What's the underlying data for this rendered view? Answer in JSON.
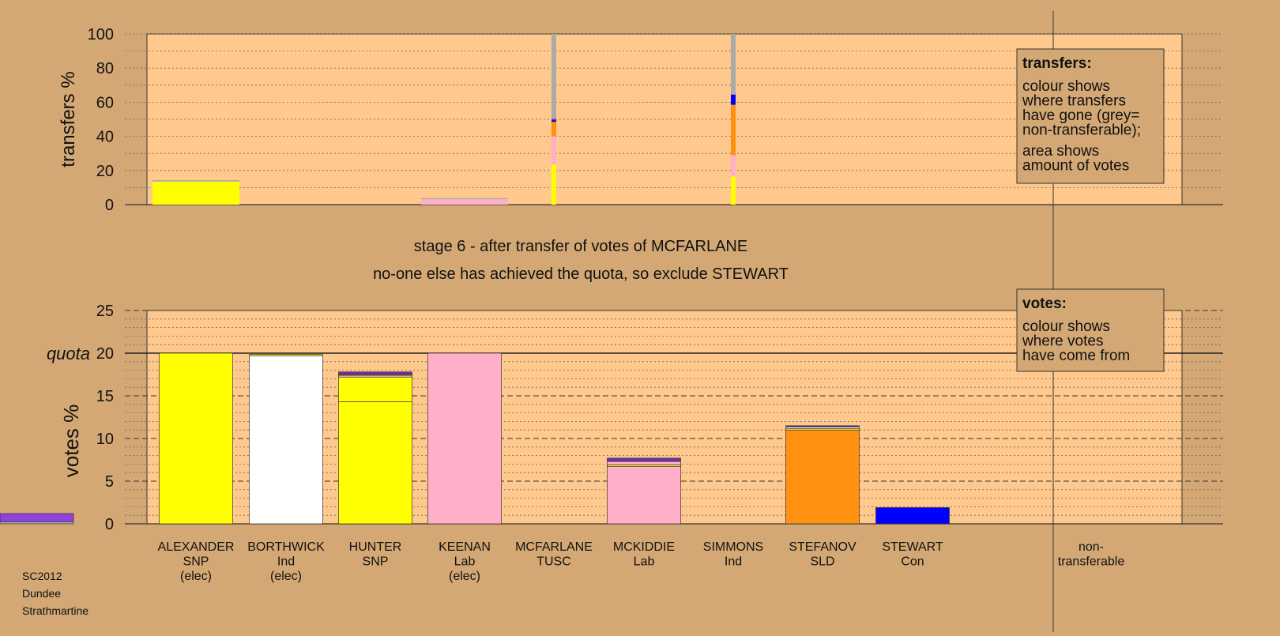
{
  "chart_data": [
    {
      "type": "bar",
      "name": "transfers",
      "ylabel": "transfers %",
      "ylim": [
        0,
        100
      ],
      "yticks": [
        0,
        20,
        40,
        60,
        80,
        100
      ],
      "grid": "dotted every 10",
      "bars": [
        {
          "candidate": "ALEXANDER",
          "segments": [
            {
              "color": "#ffff00",
              "value": 13.5
            },
            {
              "color": "#aaaaaa",
              "value": 0.8
            }
          ]
        },
        {
          "candidate": "KEENAN",
          "segments": [
            {
              "color": "#ffb0c8",
              "value": 3.2
            },
            {
              "color": "#aaaaaa",
              "value": 0.6
            }
          ]
        }
      ],
      "thin_bars": [
        {
          "candidate": "MCFARLANE",
          "segments": [
            {
              "color": "#ffff00",
              "value": 23.5
            },
            {
              "color": "#ffb0c8",
              "value": 16.5
            },
            {
              "color": "#ff9010",
              "value": 8.5
            },
            {
              "color": "#0000ff",
              "value": 1.0
            },
            {
              "color": "#7030a0",
              "value": 0.8
            },
            {
              "color": "#aaaaaa",
              "value": 49.7
            }
          ]
        },
        {
          "candidate": "SIMMONS",
          "segments": [
            {
              "color": "#ffff00",
              "value": 16.5
            },
            {
              "color": "#ffb0c8",
              "value": 12.5
            },
            {
              "color": "#ff9010",
              "value": 29.5
            },
            {
              "color": "#0000ff",
              "value": 6.0
            },
            {
              "color": "#aaaaaa",
              "value": 35.5
            }
          ]
        }
      ],
      "legend": {
        "title": "transfers:",
        "lines": [
          "colour shows",
          "where transfers",
          "have gone (grey=",
          "non-transferable);",
          "area shows",
          "amount of votes"
        ]
      }
    },
    {
      "type": "bar",
      "name": "votes",
      "ylabel": "votes %",
      "ylim": [
        0,
        25
      ],
      "yticks": [
        0,
        5,
        10,
        15,
        20,
        25
      ],
      "quota_value": 20,
      "quota_label": "quota",
      "grid": "dashed every 5, dotted every 1",
      "bars": [
        {
          "candidate": "ALEXANDER",
          "segments": [
            {
              "color": "#ffff00",
              "value": 20.0
            }
          ]
        },
        {
          "candidate": "BORTHWICK",
          "segments": [
            {
              "color": "#ffffff",
              "value": 19.7
            },
            {
              "color": "#ffff00",
              "value": 0.15
            }
          ]
        },
        {
          "candidate": "HUNTER",
          "segments": [
            {
              "color": "#ffff00",
              "value": 14.3
            },
            {
              "color": "#ffff00",
              "value": 2.9
            },
            {
              "color": "#ffb0c8",
              "value": 0.2
            },
            {
              "color": "#ff9010",
              "value": 0.1
            },
            {
              "color": "#7030a0",
              "value": 0.3
            }
          ]
        },
        {
          "candidate": "KEENAN",
          "segments": [
            {
              "color": "#ffb0c8",
              "value": 20.0
            }
          ]
        },
        {
          "candidate": "MCKIDDIE",
          "segments": [
            {
              "color": "#ffb0c8",
              "value": 6.7
            },
            {
              "color": "#ffff00",
              "value": 0.2
            },
            {
              "color": "#ffb0c8",
              "value": 0.4
            },
            {
              "color": "#7030a0",
              "value": 0.4
            }
          ]
        },
        {
          "candidate": "STEFANOV",
          "segments": [
            {
              "color": "#ff9010",
              "value": 11.0
            },
            {
              "color": "#ffff00",
              "value": 0.15
            },
            {
              "color": "#ffffff",
              "value": 0.2
            },
            {
              "color": "#7030a0",
              "value": 0.15
            }
          ]
        },
        {
          "candidate": "STEWART",
          "segments": [
            {
              "color": "#0000ff",
              "value": 1.9
            }
          ]
        },
        {
          "candidate": "non-transferable",
          "segments": [
            {
              "color": "#aaaaaa",
              "value": 0.25
            },
            {
              "color": "#9040e0",
              "value": 0.95
            }
          ]
        }
      ],
      "legend": {
        "title": "votes:",
        "lines": [
          "colour shows",
          "where votes",
          "have come from"
        ]
      }
    }
  ],
  "candidates": [
    {
      "name": "ALEXANDER",
      "party": "SNP",
      "status": "(elec)"
    },
    {
      "name": "BORTHWICK",
      "party": "Ind",
      "status": "(elec)"
    },
    {
      "name": "HUNTER",
      "party": "SNP",
      "status": ""
    },
    {
      "name": "KEENAN",
      "party": "Lab",
      "status": "(elec)"
    },
    {
      "name": "MCFARLANE",
      "party": "TUSC",
      "status": ""
    },
    {
      "name": "MCKIDDIE",
      "party": "Lab",
      "status": ""
    },
    {
      "name": "SIMMONS",
      "party": "Ind",
      "status": ""
    },
    {
      "name": "STEFANOV",
      "party": "SLD",
      "status": ""
    },
    {
      "name": "STEWART",
      "party": "Con",
      "status": ""
    },
    {
      "name": "non-",
      "party": "transferable",
      "status": ""
    }
  ],
  "stage_title": "stage 6 - after transfer of votes of MCFARLANE",
  "stage_subtitle": "no-one else has achieved the quota, so exclude STEWART",
  "footer": [
    "SC2012",
    "Dundee",
    "Strathmartine"
  ],
  "colors": {
    "background": "#d4a874",
    "plot_area": "#ffc88c",
    "legend_box": "#d4a874"
  }
}
